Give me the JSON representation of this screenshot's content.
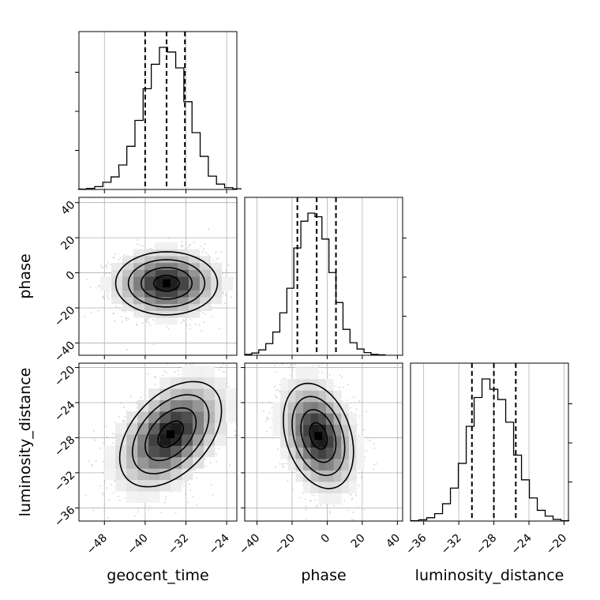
{
  "chart_data": {
    "type": "corner",
    "parameters": [
      {
        "name": "geocent_time",
        "range": [
          -53,
          -22
        ],
        "ticks": [
          -48,
          -40,
          -32,
          -24
        ],
        "tick_labels": [
          "−48",
          "−40",
          "−32",
          "−24"
        ],
        "quantiles": [
          -40.0,
          -35.8,
          -32.2
        ],
        "hist_x": [
          -52.3,
          -50.7,
          -49.1,
          -47.5,
          -45.9,
          -44.4,
          -42.8,
          -41.2,
          -39.6,
          -38.0,
          -36.4,
          -34.8,
          -33.2,
          -31.6,
          -30.0,
          -28.4,
          -26.8,
          -25.2,
          -23.6,
          -22.0
        ],
        "hist_values": [
          1,
          3,
          8,
          20,
          35,
          68,
          120,
          192,
          280,
          348,
          395,
          382,
          338,
          244,
          158,
          92,
          37,
          15,
          5,
          2
        ]
      },
      {
        "name": "phase",
        "range": [
          -47,
          43
        ],
        "ticks": [
          -40,
          -20,
          0,
          20,
          40
        ],
        "tick_labels": [
          "−40",
          "−20",
          "0",
          "20",
          "40"
        ],
        "quantiles": [
          -17.0,
          -6.0,
          5.0
        ],
        "hist_x": [
          -45.0,
          -41.0,
          -37.0,
          -33.0,
          -29.0,
          -25.0,
          -21.0,
          -17.0,
          -13.0,
          -9.0,
          -5.0,
          -1.0,
          3.0,
          7.0,
          11.0,
          15.0,
          19.0,
          23.0,
          27.0,
          31.0
        ],
        "hist_values": [
          2,
          5,
          12,
          26,
          52,
          95,
          150,
          240,
          300,
          318,
          310,
          260,
          185,
          118,
          58,
          28,
          14,
          6,
          2,
          1
        ]
      },
      {
        "name": "luminosity_distance",
        "range": [
          -37.5,
          -19.5
        ],
        "ticks": [
          -36,
          -32,
          -28,
          -24,
          -20
        ],
        "tick_labels": [
          "−36",
          "−32",
          "−28",
          "−24",
          "−20"
        ],
        "quantiles": [
          -30.5,
          -28.0,
          -25.5
        ],
        "hist_x": [
          -37.0,
          -36.1,
          -35.2,
          -34.3,
          -33.4,
          -32.5,
          -31.6,
          -30.7,
          -29.8,
          -28.9,
          -28.0,
          -27.1,
          -26.2,
          -25.3,
          -24.4,
          -23.5,
          -22.6,
          -21.7,
          -20.8,
          -19.9
        ],
        "hist_values": [
          1,
          3,
          8,
          18,
          42,
          80,
          140,
          230,
          300,
          345,
          320,
          295,
          240,
          160,
          100,
          56,
          26,
          12,
          4,
          1
        ]
      }
    ],
    "correlations": [
      {
        "x": "geocent_time",
        "y": "phase",
        "mean": [
          -35.8,
          -6.0
        ],
        "sd": [
          5.0,
          9.0
        ],
        "corr": 0.0
      },
      {
        "x": "geocent_time",
        "y": "luminosity_distance",
        "mean": [
          -35.0,
          -27.6
        ],
        "sd": [
          5.0,
          3.0
        ],
        "corr": 0.45
      },
      {
        "x": "phase",
        "y": "luminosity_distance",
        "mean": [
          -5.0,
          -27.8
        ],
        "sd": [
          10.0,
          3.0
        ],
        "corr": -0.3
      }
    ],
    "contour_levels_sigma": [
      0.5,
      1.0,
      1.5,
      2.0
    ],
    "quantiles_shown": "dashed vertical lines",
    "grid": true,
    "colors": {
      "line": "#000000",
      "grid": "#b0b0b0",
      "points": "#9a9a9a"
    }
  }
}
